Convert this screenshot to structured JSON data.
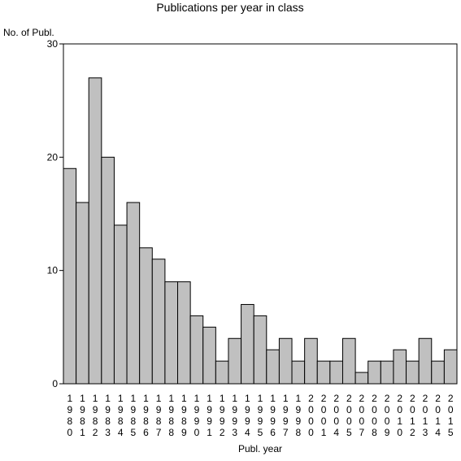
{
  "chart_data": {
    "type": "bar",
    "title": "Publications per year in class",
    "xlabel": "Publ. year",
    "ylabel": "No. of Publ.",
    "ylim": [
      0,
      30
    ],
    "yticks": [
      "0",
      "10",
      "20",
      "30"
    ],
    "grid": false,
    "categories": [
      "1980",
      "1981",
      "1982",
      "1983",
      "1984",
      "1985",
      "1986",
      "1987",
      "1988",
      "1989",
      "1990",
      "1991",
      "1992",
      "1993",
      "1994",
      "1995",
      "1996",
      "1997",
      "1998",
      "2000",
      "2001",
      "2004",
      "2005",
      "2007",
      "2008",
      "2009",
      "2010",
      "2012",
      "2013",
      "2014",
      "2015"
    ],
    "values": [
      19,
      16,
      27,
      20,
      14,
      16,
      12,
      11,
      9,
      9,
      6,
      5,
      2,
      4,
      7,
      6,
      3,
      4,
      2,
      4,
      2,
      2,
      4,
      1,
      2,
      2,
      3,
      2,
      4,
      2,
      3
    ],
    "colors": {
      "bar_fill": "#c0c0c0",
      "bar_stroke": "#000000",
      "background": "#ffffff"
    }
  }
}
